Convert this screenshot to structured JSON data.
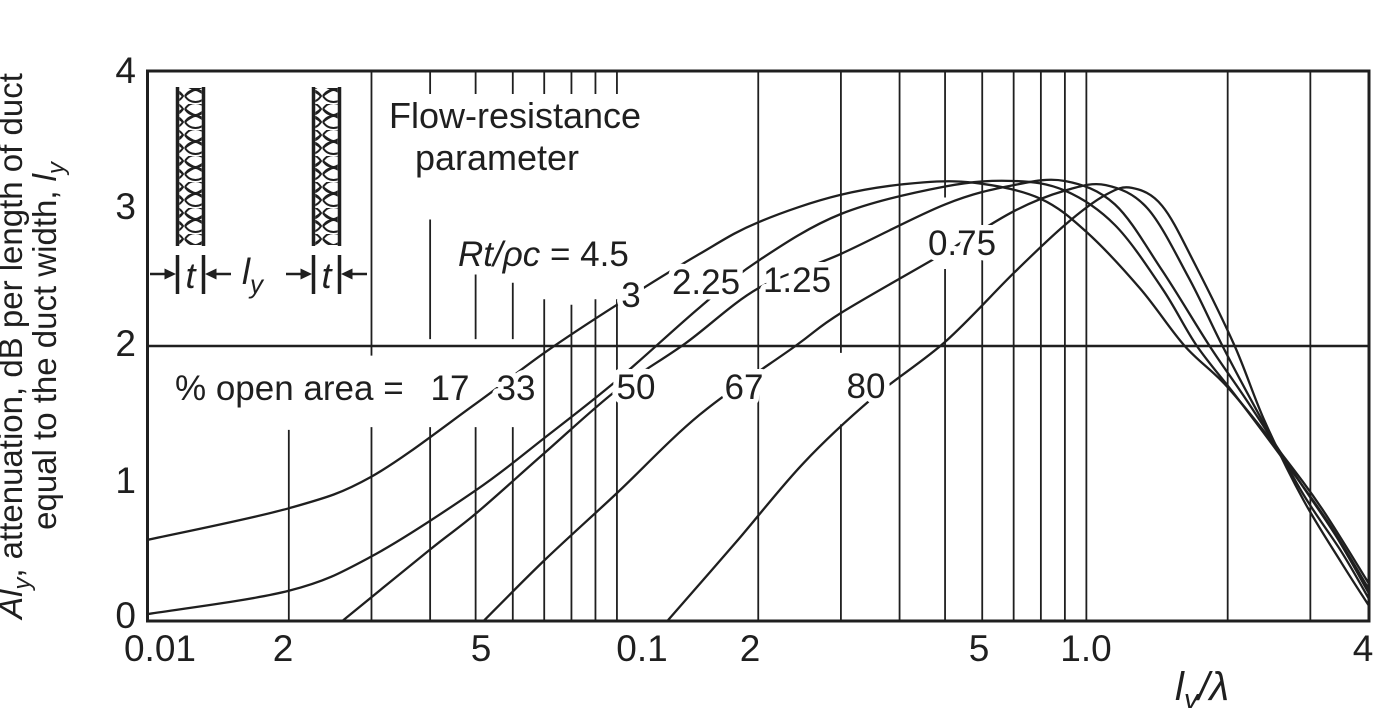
{
  "colors": {
    "ink": "#1f1f1f",
    "background": "#ffffff"
  },
  "chart_data": {
    "type": "line",
    "title": "",
    "x_axis": {
      "scale": "log",
      "range": [
        0.01,
        4
      ],
      "tick_labels": [
        "0.01",
        "2",
        "5",
        "0.1",
        "2",
        "5",
        "1.0",
        "4"
      ],
      "tick_values": [
        0.01,
        0.02,
        0.05,
        0.1,
        0.2,
        0.5,
        1.0,
        4
      ],
      "title_italic": "l",
      "title_sub": "y",
      "title_rest": "/λ"
    },
    "y_axis": {
      "range": [
        0,
        4
      ],
      "tick_labels": [
        "0",
        "1",
        "2",
        "3",
        "4"
      ],
      "tick_values": [
        0,
        1,
        2,
        3,
        4
      ],
      "label_line1_italic": "Al",
      "label_line1_sub": "y",
      "label_line1_rest": ", attenuation, dB per length of duct",
      "label_line2_pre": "equal to the duct width, ",
      "label_line2_italic": "l",
      "label_line2_sub": "y"
    },
    "annotations": {
      "flow_resistance_line1": "Flow-resistance",
      "flow_resistance_line2": "parameter",
      "rt_symbol": "Rt/ρc",
      "rt_equals": " = ",
      "open_area_prefix": "% open area = "
    },
    "grid": {
      "h_lines": [
        2
      ],
      "top_ticks": [
        0.04,
        0.05,
        0.06,
        0.07,
        0.08,
        0.09,
        0.1
      ],
      "v_lines": [
        {
          "x": 0.02,
          "segments": [
            [
              1.39,
              0
            ]
          ]
        },
        {
          "x": 0.03,
          "segments": [
            [
              4,
              1.93
            ],
            [
              1.41,
              0
            ]
          ]
        },
        {
          "x": 0.04,
          "segments": [
            [
              2.92,
              2.05
            ],
            [
              1.41,
              0
            ]
          ]
        },
        {
          "x": 0.05,
          "segments": [
            [
              2.52,
              2.05
            ],
            [
              1.41,
              0
            ]
          ]
        },
        {
          "x": 0.06,
          "segments": [
            [
              2.46,
              2.05
            ],
            [
              1.41,
              0
            ]
          ]
        },
        {
          "x": 0.07,
          "segments": [
            [
              2.34,
              0
            ]
          ]
        },
        {
          "x": 0.08,
          "segments": [
            [
              2.3,
              0
            ]
          ]
        },
        {
          "x": 0.09,
          "segments": [
            [
              2.34,
              0
            ]
          ]
        },
        {
          "x": 0.1,
          "segments": [
            [
              2.34,
              0
            ]
          ]
        },
        {
          "x": 0.2,
          "segments": [
            [
              4,
              0
            ]
          ]
        },
        {
          "x": 0.3,
          "segments": [
            [
              4,
              1.95
            ],
            [
              1.43,
              0
            ]
          ]
        },
        {
          "x": 0.4,
          "segments": [
            [
              4,
              0
            ]
          ]
        },
        {
          "x": 0.5,
          "segments": [
            [
              4,
              3.08
            ],
            [
              2.56,
              0
            ]
          ]
        },
        {
          "x": 0.6,
          "segments": [
            [
              4,
              0
            ]
          ]
        },
        {
          "x": 0.7,
          "segments": [
            [
              4,
              0
            ]
          ]
        },
        {
          "x": 0.8,
          "segments": [
            [
              4,
              0
            ]
          ]
        },
        {
          "x": 0.9,
          "segments": [
            [
              4,
              0
            ]
          ]
        },
        {
          "x": 1,
          "segments": [
            [
              4,
              0
            ]
          ]
        },
        {
          "x": 2,
          "segments": [
            [
              4,
              0
            ]
          ]
        },
        {
          "x": 3,
          "segments": [
            [
              4,
              0
            ]
          ]
        }
      ]
    },
    "legend": "none",
    "series": [
      {
        "open_area_pct": "17",
        "rt_over_rho_c": "4.5",
        "points": [
          [
            0.01,
            0.59
          ],
          [
            0.02,
            0.82
          ],
          [
            0.03,
            1.05
          ],
          [
            0.05,
            1.58
          ],
          [
            0.07,
            1.95
          ],
          [
            0.1,
            2.3
          ],
          [
            0.15,
            2.67
          ],
          [
            0.2,
            2.9
          ],
          [
            0.3,
            3.1
          ],
          [
            0.45,
            3.19
          ],
          [
            0.6,
            3.18
          ],
          [
            0.8,
            3.07
          ],
          [
            1.0,
            2.83
          ],
          [
            1.3,
            2.42
          ],
          [
            1.62,
            2.0
          ],
          [
            2.0,
            1.7
          ],
          [
            2.6,
            1.22
          ],
          [
            3.2,
            0.8
          ],
          [
            4.0,
            0.27
          ]
        ]
      },
      {
        "open_area_pct": "33",
        "rt_over_rho_c": "3",
        "points": [
          [
            0.01,
            0.05
          ],
          [
            0.02,
            0.22
          ],
          [
            0.03,
            0.47
          ],
          [
            0.05,
            0.95
          ],
          [
            0.07,
            1.33
          ],
          [
            0.1,
            1.75
          ],
          [
            0.15,
            2.28
          ],
          [
            0.2,
            2.62
          ],
          [
            0.3,
            2.96
          ],
          [
            0.5,
            3.16
          ],
          [
            0.7,
            3.2
          ],
          [
            0.9,
            3.13
          ],
          [
            1.15,
            2.88
          ],
          [
            1.45,
            2.42
          ],
          [
            1.72,
            2.0
          ],
          [
            2.1,
            1.62
          ],
          [
            2.7,
            1.12
          ],
          [
            3.3,
            0.7
          ],
          [
            4.0,
            0.23
          ]
        ]
      },
      {
        "open_area_pct": "50",
        "rt_over_rho_c": "2.25",
        "points": [
          [
            0.026,
            0.0
          ],
          [
            0.04,
            0.52
          ],
          [
            0.05,
            0.78
          ],
          [
            0.07,
            1.22
          ],
          [
            0.1,
            1.68
          ],
          [
            0.14,
            2.02
          ],
          [
            0.2,
            2.42
          ],
          [
            0.3,
            2.67
          ],
          [
            0.5,
            3.03
          ],
          [
            0.7,
            3.17
          ],
          [
            0.9,
            3.2
          ],
          [
            1.15,
            3.03
          ],
          [
            1.45,
            2.55
          ],
          [
            1.83,
            2.0
          ],
          [
            2.2,
            1.6
          ],
          [
            2.8,
            1.05
          ],
          [
            3.4,
            0.62
          ],
          [
            4.0,
            0.2
          ]
        ]
      },
      {
        "open_area_pct": "67",
        "rt_over_rho_c": "1.25",
        "points": [
          [
            0.052,
            0.0
          ],
          [
            0.07,
            0.44
          ],
          [
            0.1,
            0.93
          ],
          [
            0.15,
            1.5
          ],
          [
            0.24,
            2.0
          ],
          [
            0.3,
            2.24
          ],
          [
            0.5,
            2.68
          ],
          [
            0.7,
            2.98
          ],
          [
            0.9,
            3.13
          ],
          [
            1.1,
            3.17
          ],
          [
            1.35,
            3.0
          ],
          [
            1.65,
            2.5
          ],
          [
            1.95,
            2.0
          ],
          [
            2.35,
            1.48
          ],
          [
            2.9,
            0.92
          ],
          [
            3.5,
            0.5
          ],
          [
            4.0,
            0.16
          ]
        ]
      },
      {
        "open_area_pct": "80",
        "rt_over_rho_c": "0.75",
        "points": [
          [
            0.128,
            0.0
          ],
          [
            0.18,
            0.58
          ],
          [
            0.25,
            1.15
          ],
          [
            0.35,
            1.62
          ],
          [
            0.5,
            2.03
          ],
          [
            0.7,
            2.53
          ],
          [
            0.9,
            2.88
          ],
          [
            1.1,
            3.1
          ],
          [
            1.25,
            3.15
          ],
          [
            1.45,
            3.02
          ],
          [
            1.7,
            2.6
          ],
          [
            2.07,
            2.0
          ],
          [
            2.4,
            1.45
          ],
          [
            2.9,
            0.88
          ],
          [
            3.5,
            0.42
          ],
          [
            4.0,
            0.11
          ]
        ]
      }
    ]
  },
  "inset": {
    "thickness_label": "t",
    "width_label_italic": "l",
    "width_label_sub": "y"
  }
}
